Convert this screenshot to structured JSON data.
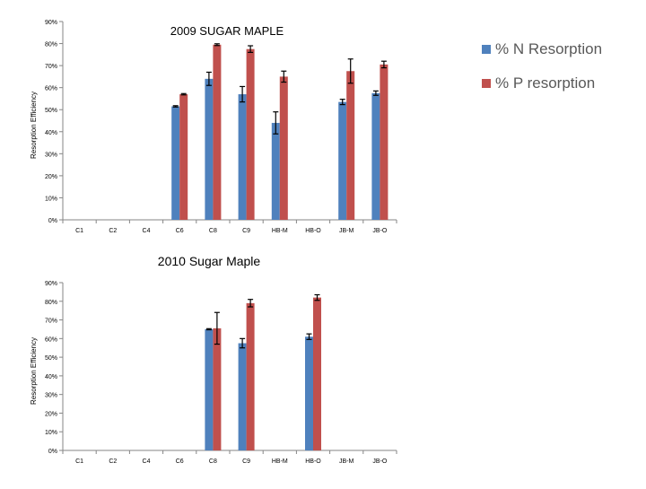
{
  "chart_data": [
    {
      "type": "bar",
      "title": "2009 SUGAR MAPLE",
      "xlabel": "",
      "ylabel": "Resorption Efficiency",
      "ylim": [
        0,
        90
      ],
      "y_tick_values": [
        0,
        10,
        20,
        30,
        40,
        50,
        60,
        70,
        80,
        90
      ],
      "y_tick_labels": [
        "0%",
        "10%",
        "20%",
        "30%",
        "40%",
        "50%",
        "60%",
        "70%",
        "80%",
        "90%"
      ],
      "categories": [
        "C1",
        "C2",
        "C4",
        "C6",
        "C8",
        "C9",
        "HB-M",
        "HB-O",
        "JB-M",
        "JB-O"
      ],
      "legend_position": "right",
      "series": [
        {
          "name": "% N Resorption",
          "color": "#4f81bd",
          "values": [
            null,
            null,
            null,
            51.5,
            64,
            57,
            44,
            null,
            53.5,
            57.5
          ],
          "errors": [
            null,
            null,
            null,
            0.3,
            3,
            3.5,
            5,
            null,
            1.2,
            1
          ]
        },
        {
          "name": "% P resorption",
          "color": "#c0504d",
          "values": [
            null,
            null,
            null,
            57,
            79.5,
            77.5,
            65,
            null,
            67.5,
            70.5
          ],
          "errors": [
            null,
            null,
            null,
            0.3,
            0.4,
            1.5,
            2.5,
            null,
            5.5,
            1.5
          ]
        }
      ]
    },
    {
      "type": "bar",
      "title": "2010 Sugar Maple",
      "xlabel": "",
      "ylabel": "Resorption Efficiency",
      "ylim": [
        0,
        90
      ],
      "y_tick_values": [
        0,
        10,
        20,
        30,
        40,
        50,
        60,
        70,
        80,
        90
      ],
      "y_tick_labels": [
        "0%",
        "10%",
        "20%",
        "30%",
        "40%",
        "50%",
        "60%",
        "70%",
        "80%",
        "90%"
      ],
      "categories": [
        "C1",
        "C2",
        "C4",
        "C6",
        "C8",
        "C9",
        "HB-M",
        "HB-O",
        "JB-M",
        "JB-O"
      ],
      "legend_position": "none",
      "series": [
        {
          "name": "% N Resorption",
          "color": "#4f81bd",
          "values": [
            null,
            null,
            null,
            null,
            65,
            57.5,
            null,
            61,
            null,
            null
          ],
          "errors": [
            null,
            null,
            null,
            null,
            0.3,
            2.5,
            null,
            1.5,
            null,
            null
          ]
        },
        {
          "name": "% P resorption",
          "color": "#c0504d",
          "values": [
            null,
            null,
            null,
            null,
            65.5,
            79,
            null,
            82,
            null,
            null
          ],
          "errors": [
            null,
            null,
            null,
            null,
            8.5,
            2,
            null,
            1.5,
            null,
            null
          ]
        }
      ]
    }
  ]
}
